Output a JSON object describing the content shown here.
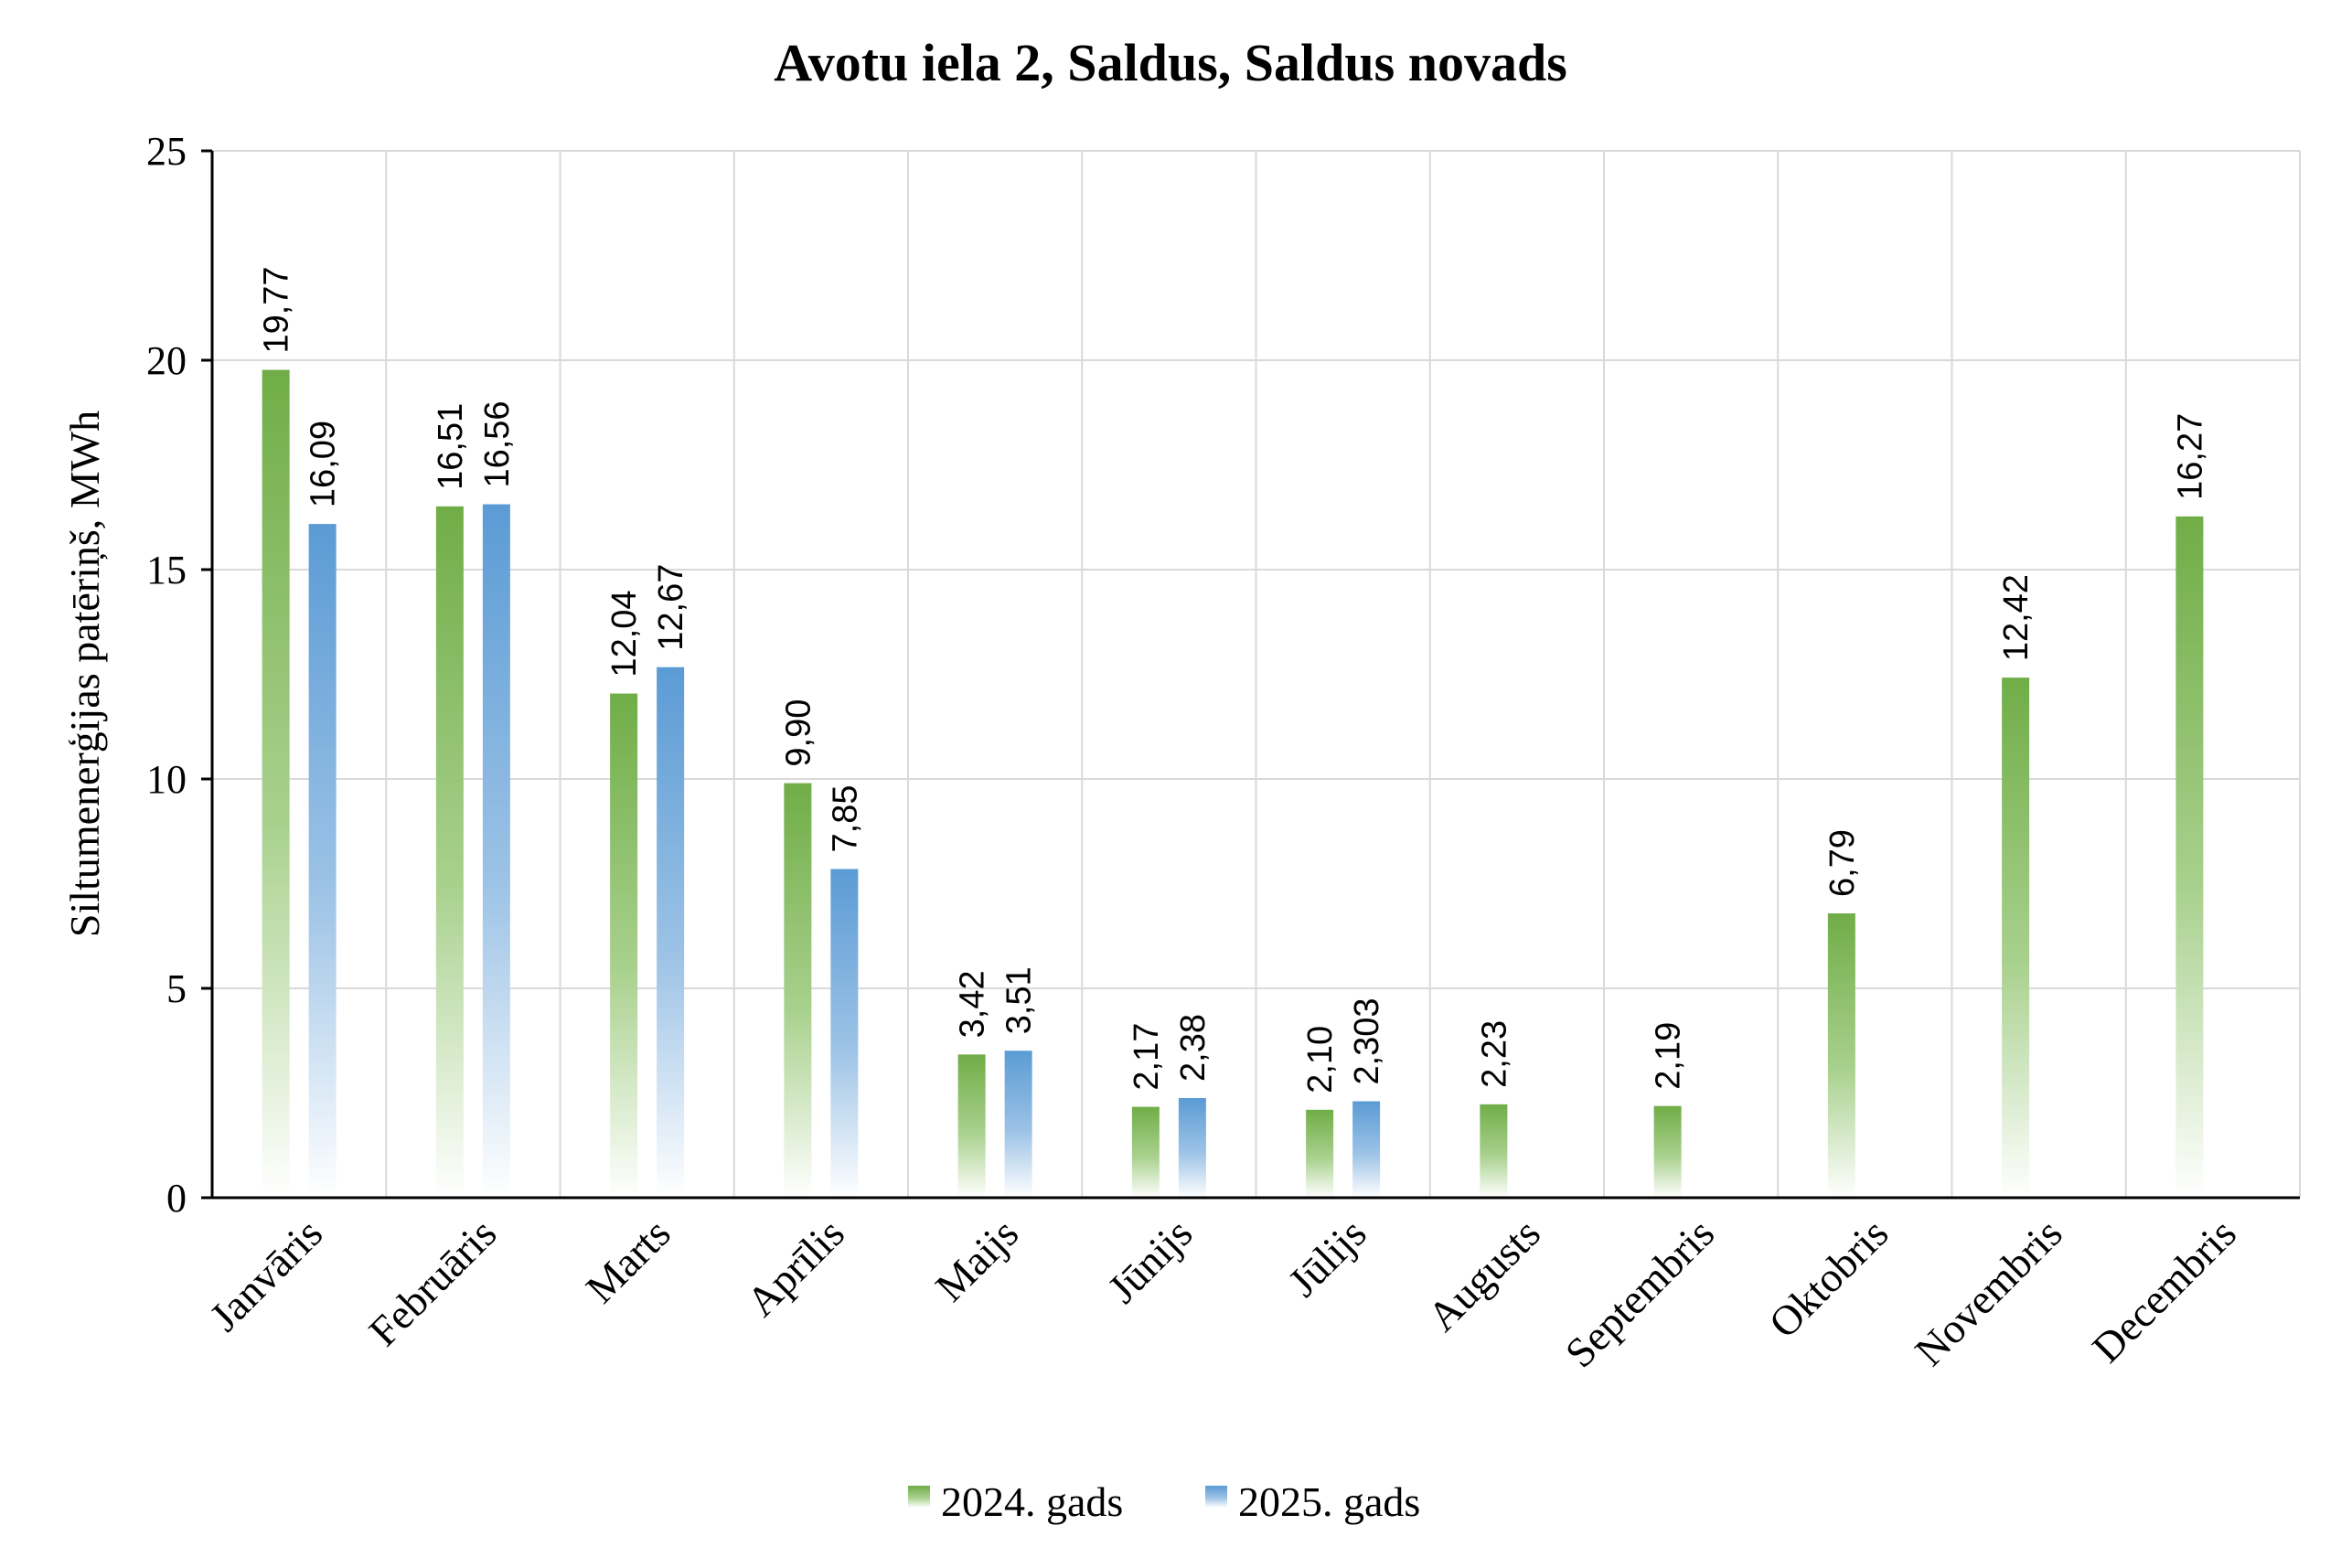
{
  "chart_data": {
    "type": "bar",
    "title": "Avotu iela 2, Saldus, Saldus novads",
    "xlabel": "",
    "ylabel": "Siltumenerģijas patēriņš, MWh",
    "ylim": [
      0,
      25
    ],
    "yticks": [
      "0",
      "5",
      "10",
      "15",
      "20",
      "25"
    ],
    "grid": true,
    "legend_position": "bottom",
    "categories": [
      "Janvāris",
      "Februāris",
      "Marts",
      "Aprīlis",
      "Maijs",
      "Jūnijs",
      "Jūlijs",
      "Augusts",
      "Septembris",
      "Oktobris",
      "Novembris",
      "Decembris"
    ],
    "series": [
      {
        "name": "2024. gads",
        "color": "#70ad47",
        "values": [
          19.77,
          16.51,
          12.04,
          9.9,
          3.42,
          2.17,
          2.1,
          2.23,
          2.19,
          6.79,
          12.42,
          16.27
        ],
        "labels": [
          "19,77",
          "16,51",
          "12,04",
          "9,90",
          "3,42",
          "2,17",
          "2,10",
          "2,23",
          "2,19",
          "6,79",
          "12,42",
          "16,27"
        ]
      },
      {
        "name": "2025. gads",
        "color": "#5b9bd5",
        "values": [
          16.09,
          16.56,
          12.67,
          7.85,
          3.51,
          2.38,
          2.303,
          null,
          null,
          null,
          null,
          null
        ],
        "labels": [
          "16,09",
          "16,56",
          "12,67",
          "7,85",
          "3,51",
          "2,38",
          "2,303",
          "",
          "",
          "",
          "",
          ""
        ]
      }
    ]
  }
}
